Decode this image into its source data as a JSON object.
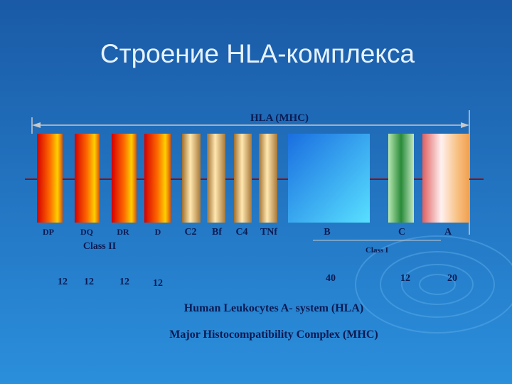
{
  "title": "Строение HLA-комплекса",
  "span_label": "HLA (MHC)",
  "loci": [
    {
      "label": "DP",
      "count": 12
    },
    {
      "label": "DQ",
      "count": 12
    },
    {
      "label": "DR",
      "count": 12
    },
    {
      "label": "D",
      "count": 12
    },
    {
      "label": "C2"
    },
    {
      "label": "Bf"
    },
    {
      "label": "C4"
    },
    {
      "label": "TNf"
    },
    {
      "label": "B",
      "count": 40
    },
    {
      "label": "C",
      "count": 12
    },
    {
      "label": "A",
      "count": 20
    }
  ],
  "class_labels": {
    "class_ii": "Class II",
    "class_i": "Class I"
  },
  "notes": [
    "Human Leukocytes A- system  (HLA)",
    "Major Histocompatibility Complex  (MHC)"
  ]
}
